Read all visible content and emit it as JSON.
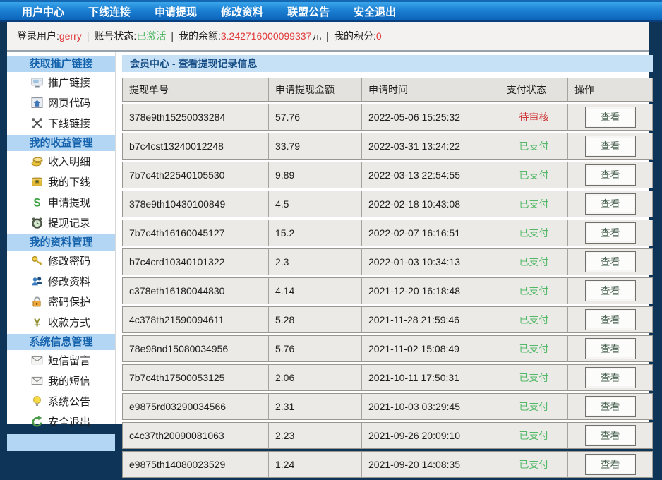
{
  "nav": {
    "items": [
      {
        "label": "用户中心",
        "name": "nav-user-center"
      },
      {
        "label": "下线连接",
        "name": "nav-downline-link"
      },
      {
        "label": "申请提现",
        "name": "nav-apply-withdraw"
      },
      {
        "label": "修改资料",
        "name": "nav-edit-profile"
      },
      {
        "label": "联盟公告",
        "name": "nav-alliance-notice"
      },
      {
        "label": "安全退出",
        "name": "nav-safe-logout"
      }
    ]
  },
  "status_bar": {
    "separator": "|",
    "segments": [
      {
        "label": "登录用户:",
        "value": "gerry",
        "value_color": "red",
        "suffix": ""
      },
      {
        "label": "账号状态:",
        "value": "已激活",
        "value_color": "green",
        "suffix": ""
      },
      {
        "label": "我的余额: ",
        "value": "3.242716000099337",
        "value_color": "red",
        "suffix": " 元"
      },
      {
        "label": "我的积分: ",
        "value": "0",
        "value_color": "red",
        "suffix": ""
      }
    ]
  },
  "sidebar": {
    "sections": [
      {
        "title": "获取推广链接",
        "name": "section-promo-links",
        "items": [
          {
            "label": "推广链接",
            "name": "sidebar-item-promo-link",
            "icon": "monitor-icon"
          },
          {
            "label": "网页代码",
            "name": "sidebar-item-webpage-code",
            "icon": "homepage-icon"
          },
          {
            "label": "下线链接",
            "name": "sidebar-item-downline-link",
            "icon": "network-icon"
          }
        ]
      },
      {
        "title": "我的收益管理",
        "name": "section-income",
        "items": [
          {
            "label": "收入明细",
            "name": "sidebar-item-income-detail",
            "icon": "coins-icon"
          },
          {
            "label": "我的下线",
            "name": "sidebar-item-my-downline",
            "icon": "money-chest-icon"
          },
          {
            "label": "申请提现",
            "name": "sidebar-item-apply-withdraw",
            "icon": "dollar-icon"
          },
          {
            "label": "提现记录",
            "name": "sidebar-item-withdraw-records",
            "icon": "alarm-clock-icon"
          }
        ]
      },
      {
        "title": "我的资料管理",
        "name": "section-profile",
        "items": [
          {
            "label": "修改密码",
            "name": "sidebar-item-change-password",
            "icon": "key-icon"
          },
          {
            "label": "修改资料",
            "name": "sidebar-item-edit-profile",
            "icon": "users-icon"
          },
          {
            "label": "密码保护",
            "name": "sidebar-item-password-protect",
            "icon": "padlock-icon"
          },
          {
            "label": "收款方式",
            "name": "sidebar-item-payment-method",
            "icon": "yuan-icon"
          }
        ]
      },
      {
        "title": "系统信息管理",
        "name": "section-system",
        "items": [
          {
            "label": "短信留言",
            "name": "sidebar-item-sms-message",
            "icon": "envelope-icon"
          },
          {
            "label": "我的短信",
            "name": "sidebar-item-my-sms",
            "icon": "envelope-icon"
          },
          {
            "label": "系统公告",
            "name": "sidebar-item-system-notice",
            "icon": "bulb-icon"
          },
          {
            "label": "安全退出",
            "name": "sidebar-item-safe-logout",
            "icon": "logout-arrow-icon"
          }
        ]
      }
    ]
  },
  "main": {
    "title": "会员中心 - 查看提现记录信息",
    "table": {
      "headers": [
        "提现单号",
        "申请提现金额",
        "申请时间",
        "支付状态",
        "操作"
      ],
      "view_label": "查看",
      "rows": [
        {
          "id": "378e9th15250033284",
          "amount": "57.76",
          "time": "2022-05-06 15:25:32",
          "status": "待审核",
          "status_type": "pending"
        },
        {
          "id": "b7c4cst13240012248",
          "amount": "33.79",
          "time": "2022-03-31 13:24:22",
          "status": "已支付",
          "status_type": "paid"
        },
        {
          "id": "7b7c4th22540105530",
          "amount": "9.89",
          "time": "2022-03-13 22:54:55",
          "status": "已支付",
          "status_type": "paid"
        },
        {
          "id": "378e9th10430100849",
          "amount": "4.5",
          "time": "2022-02-18 10:43:08",
          "status": "已支付",
          "status_type": "paid"
        },
        {
          "id": "7b7c4th16160045127",
          "amount": "15.2",
          "time": "2022-02-07 16:16:51",
          "status": "已支付",
          "status_type": "paid"
        },
        {
          "id": "b7c4crd10340101322",
          "amount": "2.3",
          "time": "2022-01-03 10:34:13",
          "status": "已支付",
          "status_type": "paid"
        },
        {
          "id": "c378eth16180044830",
          "amount": "4.14",
          "time": "2021-12-20 16:18:48",
          "status": "已支付",
          "status_type": "paid"
        },
        {
          "id": "4c378th21590094611",
          "amount": "5.28",
          "time": "2021-11-28 21:59:46",
          "status": "已支付",
          "status_type": "paid"
        },
        {
          "id": "78e98nd15080034956",
          "amount": "5.76",
          "time": "2021-11-02 15:08:49",
          "status": "已支付",
          "status_type": "paid"
        },
        {
          "id": "7b7c4th17500053125",
          "amount": "2.06",
          "time": "2021-10-11 17:50:31",
          "status": "已支付",
          "status_type": "paid"
        },
        {
          "id": "e9875rd03290034566",
          "amount": "2.31",
          "time": "2021-10-03 03:29:45",
          "status": "已支付",
          "status_type": "paid"
        },
        {
          "id": "c4c37th20090081063",
          "amount": "2.23",
          "time": "2021-09-26 20:09:10",
          "status": "已支付",
          "status_type": "paid"
        },
        {
          "id": "e9875th14080023529",
          "amount": "1.24",
          "time": "2021-09-20 14:08:35",
          "status": "已支付",
          "status_type": "paid"
        }
      ]
    }
  },
  "colors": {
    "nav_gradient_top": "#39a5ea",
    "nav_gradient_bottom": "#0c63ba",
    "page_background": "#0e3557",
    "section_header_bg": "#b2d6f3",
    "section_header_text": "#1663ad",
    "title_bar_bg": "#c6e0f6",
    "title_bar_text": "#174f86",
    "status_pending": "#cc3434",
    "status_paid": "#53b969",
    "value_red": "#e03a3a",
    "table_header_bg": "#e4e2de",
    "table_row_bg": "#eceae6"
  }
}
